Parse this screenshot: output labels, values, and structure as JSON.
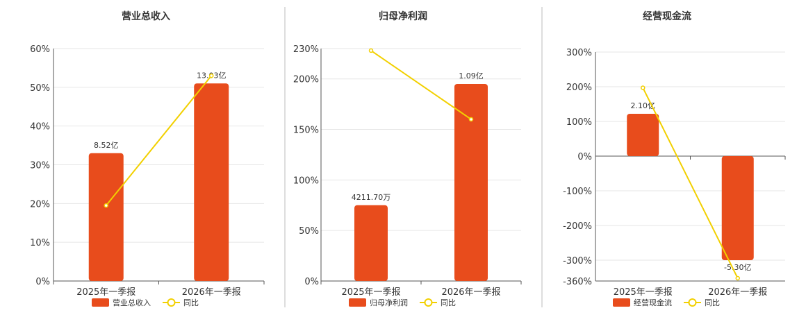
{
  "chart_data": [
    {
      "type": "bar",
      "title": "营业总收入",
      "categories": [
        "2025年一季报",
        "2026年一季报"
      ],
      "series": [
        {
          "name": "营业总收入",
          "type": "bar",
          "values": [
            8.52,
            13.03
          ],
          "labels": [
            "8.52亿",
            "13.03亿"
          ],
          "axis_values": [
            33.0,
            51.0
          ]
        },
        {
          "name": "同比",
          "type": "line",
          "values": [
            19.5,
            53.0
          ]
        }
      ],
      "ylim": [
        0,
        60
      ],
      "yticks": [
        "0%",
        "10%",
        "20%",
        "30%",
        "40%",
        "50%",
        "60%"
      ],
      "ytick_values": [
        0,
        10,
        20,
        30,
        40,
        50,
        60
      ],
      "grid": true,
      "legend": "bottom"
    },
    {
      "type": "bar",
      "title": "归母净利润",
      "categories": [
        "2025年一季报",
        "2026年一季报"
      ],
      "series": [
        {
          "name": "归母净利润",
          "type": "bar",
          "values": [
            0.42117,
            1.09
          ],
          "labels": [
            "4211.70万",
            "1.09亿"
          ],
          "axis_values": [
            75,
            195
          ]
        },
        {
          "name": "同比",
          "type": "line",
          "values": [
            228,
            160
          ]
        }
      ],
      "ylim": [
        0,
        230
      ],
      "yticks": [
        "0%",
        "50%",
        "100%",
        "150%",
        "200%",
        "230%"
      ],
      "ytick_values": [
        0,
        50,
        100,
        150,
        200,
        230
      ],
      "grid": true,
      "legend": "bottom"
    },
    {
      "type": "bar",
      "title": "经营现金流",
      "categories": [
        "2025年一季报",
        "2026年一季报"
      ],
      "series": [
        {
          "name": "经营现金流",
          "type": "bar",
          "values": [
            2.1,
            -5.3
          ],
          "labels": [
            "2.10亿",
            "-5.30亿"
          ],
          "axis_values": [
            122,
            -300
          ]
        },
        {
          "name": "同比",
          "type": "line",
          "values": [
            197,
            -352
          ]
        }
      ],
      "ylim": [
        -360,
        300
      ],
      "yticks": [
        "300%",
        "200%",
        "100%",
        "0%",
        "-100%",
        "-200%",
        "-300%",
        "-360%"
      ],
      "ytick_values": [
        300,
        200,
        100,
        0,
        -100,
        -200,
        -300,
        -360
      ],
      "grid": true,
      "legend": "bottom"
    }
  ],
  "colors": {
    "bar": "#e84c1c",
    "line": "#f2d000",
    "grid": "#e6e6e6",
    "axis": "#555555",
    "divider": "#bbbbbb"
  }
}
